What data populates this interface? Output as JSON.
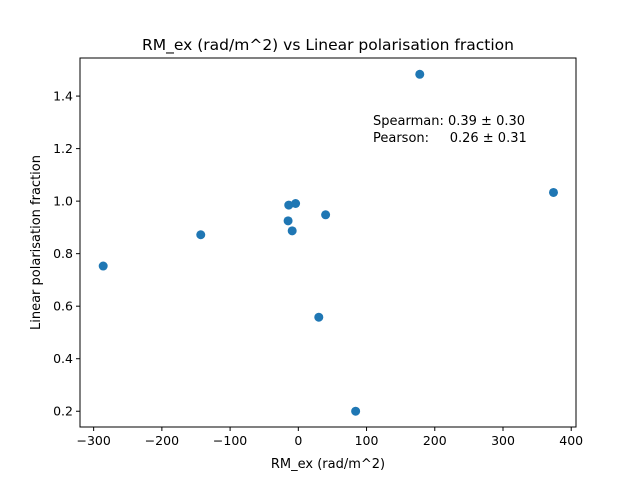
{
  "chart_data": {
    "type": "scatter",
    "title": "RM_ex (rad/m^2) vs Linear polarisation fraction",
    "xlabel": "RM_ex (rad/m^2)",
    "ylabel": "Linear polarisation fraction",
    "xlim": [
      -320,
      407
    ],
    "ylim": [
      0.14,
      1.545
    ],
    "xticks": [
      -300,
      -200,
      -100,
      0,
      100,
      200,
      300,
      400
    ],
    "xtick_labels": [
      "−300",
      "−200",
      "−100",
      "0",
      "100",
      "200",
      "300",
      "400"
    ],
    "yticks": [
      0.2,
      0.4,
      0.6,
      0.8,
      1.0,
      1.2,
      1.4
    ],
    "ytick_labels": [
      "0.2",
      "0.4",
      "0.6",
      "0.8",
      "1.0",
      "1.2",
      "1.4"
    ],
    "grid": false,
    "marker_color": "#1f77b4",
    "points": [
      {
        "x": -286,
        "y": 0.753
      },
      {
        "x": -143,
        "y": 0.872
      },
      {
        "x": -14,
        "y": 0.985
      },
      {
        "x": -15,
        "y": 0.925
      },
      {
        "x": -9,
        "y": 0.887
      },
      {
        "x": -4,
        "y": 0.991
      },
      {
        "x": 40,
        "y": 0.948
      },
      {
        "x": 30,
        "y": 0.558
      },
      {
        "x": 84,
        "y": 0.2
      },
      {
        "x": 178,
        "y": 1.483
      },
      {
        "x": 374,
        "y": 1.033
      }
    ],
    "annotations": [
      {
        "line1": "Spearman: 0.39 ± 0.30",
        "line2": "Pearson:     0.26 ± 0.31"
      }
    ]
  }
}
